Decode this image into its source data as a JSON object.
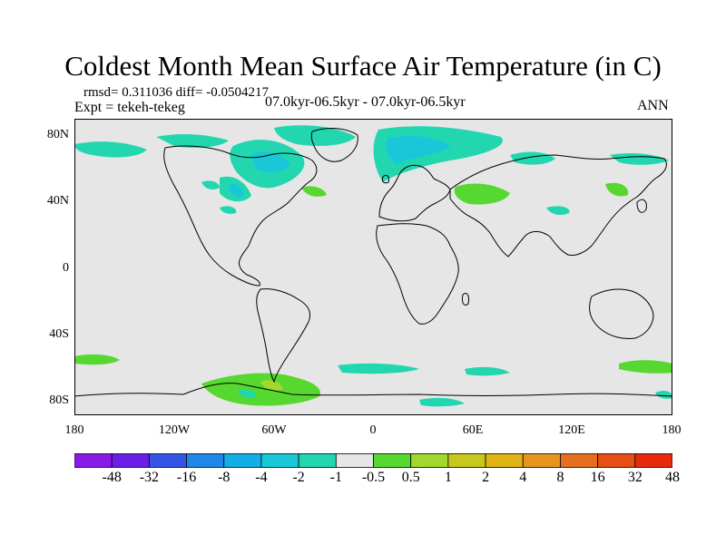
{
  "title": "Coldest Month Mean Surface Air Temperature (in C)",
  "stats": "rmsd= 0.311036 diff= -0.0504217",
  "experiment": "Expt = tekeh-tekeg",
  "period": "07.0kyr-06.5kyr - 07.0kyr-06.5kyr",
  "season": "ANN",
  "y_axis_labels": [
    "80N",
    "40N",
    "0",
    "40S",
    "80S"
  ],
  "x_axis_labels": [
    "180",
    "120W",
    "60W",
    "0",
    "60E",
    "120E",
    "180"
  ],
  "colorbar": {
    "colors": [
      "#8a1ae6",
      "#6a1ee6",
      "#3355e6",
      "#1e88e6",
      "#14aee6",
      "#18c8d8",
      "#22d6b0",
      "#e6e6e6",
      "#56d830",
      "#a0d82c",
      "#c8c81c",
      "#e0b414",
      "#e6961e",
      "#e66e1e",
      "#e64e14",
      "#e62a0a"
    ],
    "labels": [
      "-48",
      "-32",
      "-16",
      "-8",
      "-4",
      "-2",
      "-1",
      "-0.5",
      "0.5",
      "1",
      "2",
      "4",
      "8",
      "16",
      "32",
      "48"
    ]
  },
  "map": {
    "background_color": "#e6e6e6",
    "coastline_color": "#000000"
  }
}
